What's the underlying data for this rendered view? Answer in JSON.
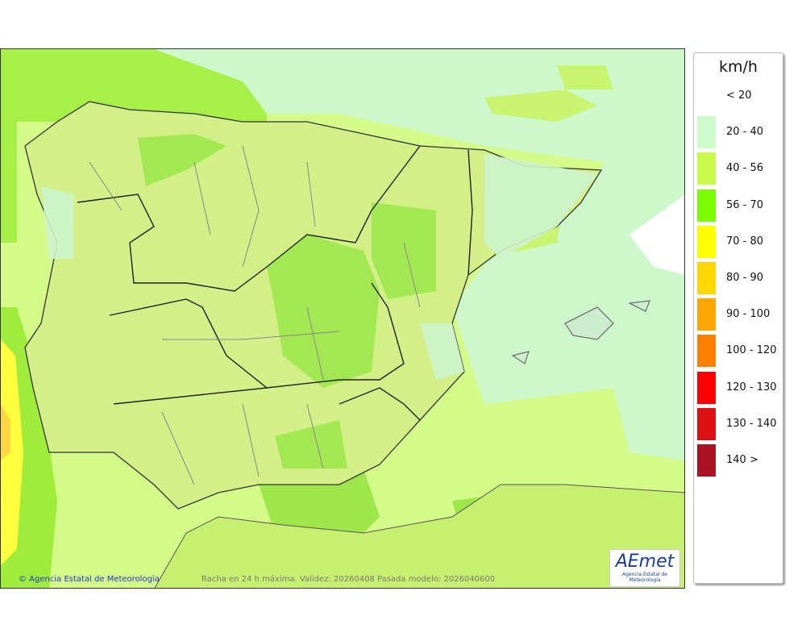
{
  "legend": {
    "unit": "km/h",
    "items": [
      {
        "label": "< 20",
        "color": null
      },
      {
        "label": "20 - 40",
        "color": "#ccfccc"
      },
      {
        "label": "40 - 56",
        "color": "#c8fb48"
      },
      {
        "label": "56 - 70",
        "color": "#7cfc00"
      },
      {
        "label": "70 - 80",
        "color": "#ffff00"
      },
      {
        "label": "80 - 90",
        "color": "#ffd700"
      },
      {
        "label": "90 - 100",
        "color": "#ffa500"
      },
      {
        "label": "100 - 120",
        "color": "#ff8000"
      },
      {
        "label": "120 - 130",
        "color": "#ff0000"
      },
      {
        "label": "130 - 140",
        "color": "#dd1111"
      },
      {
        "label": "140 >",
        "color": "#aa1122"
      }
    ]
  },
  "footer": {
    "copyright": "© Agencia Estatal de Meteorología",
    "caption": "Racha en 24 h máxima. Validez: 20260408 Pasada modelo: 2026040600"
  },
  "logo": {
    "text": "AEmet",
    "subtext": "Agencia Estatal de Meteorología"
  }
}
